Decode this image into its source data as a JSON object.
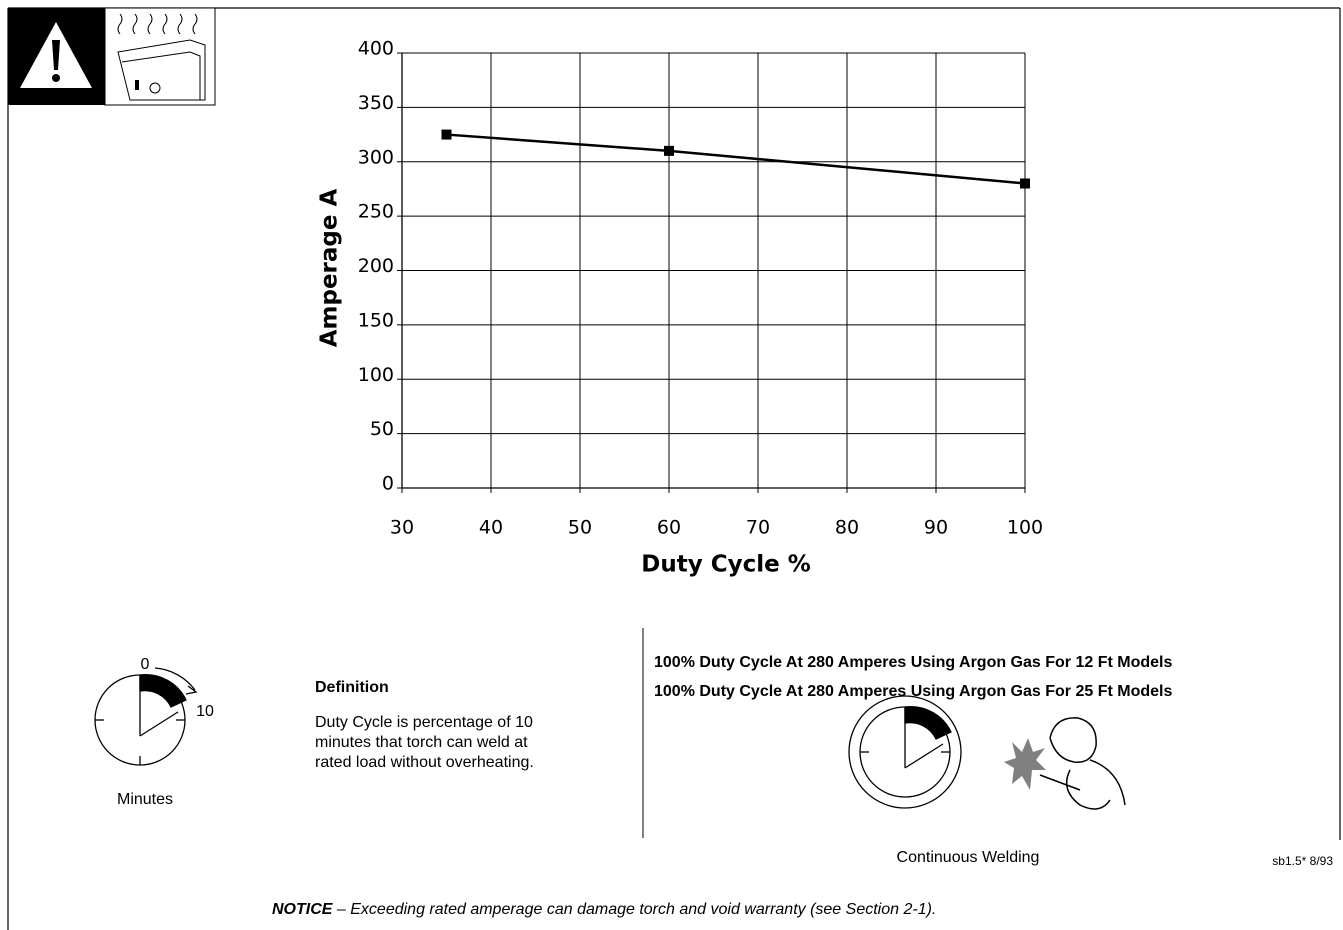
{
  "chart_data": {
    "type": "line",
    "xlabel": "Duty Cycle %",
    "ylabel": "Amperage A",
    "x": [
      35,
      60,
      100
    ],
    "values": [
      325,
      310,
      280
    ],
    "color": "#000000",
    "xlim": [
      30,
      100
    ],
    "xticks": [
      30,
      40,
      50,
      60,
      70,
      80,
      90,
      100
    ],
    "ylim": [
      0,
      400
    ],
    "yticks": [
      0,
      50,
      100,
      150,
      200,
      250,
      300,
      350,
      400
    ],
    "grid": true
  },
  "definition_diagram": {
    "start_label": "0",
    "end_label": "10",
    "caption": "Minutes"
  },
  "definition": {
    "heading": "Definition",
    "lines": [
      "Duty Cycle is percentage of 10",
      "minutes that torch can weld at",
      "rated load without overheating."
    ]
  },
  "ratings": [
    "100% Duty Cycle At 280 Amperes Using Argon Gas For 12 Ft Models",
    "100% Duty Cycle At 280 Amperes Using Argon Gas For 25 Ft Models"
  ],
  "continuous_caption": "Continuous Welding",
  "doc_code": "sb1.5* 8/93",
  "notice": {
    "label": "NOTICE",
    "text": "– Exceeding rated amperage can damage torch and void warranty (see Section 2-1)."
  }
}
